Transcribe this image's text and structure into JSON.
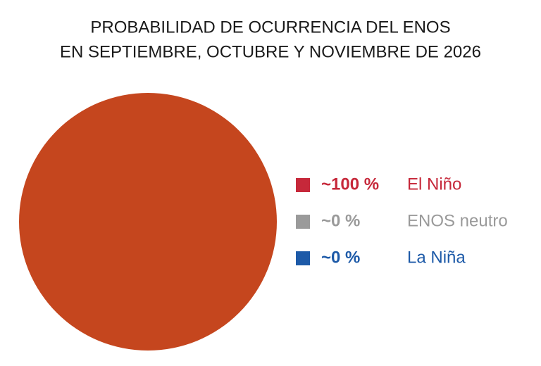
{
  "chart_data": {
    "type": "pie",
    "title": [
      "PROBABILIDAD DE OCURRENCIA DEL ENOS",
      "EN SEPTIEMBRE, OCTUBRE Y NOVIEMBRE DE 2026"
    ],
    "categories": [
      "El Niño",
      "ENOS neutro",
      "La Niña"
    ],
    "values": [
      100,
      0,
      0
    ],
    "value_labels": [
      "~100 %",
      "~0 %",
      "~0 %"
    ],
    "colors": [
      "#c5461e",
      "#9a9a9a",
      "#1d5aa8"
    ],
    "legend_colors": [
      "#c6283a",
      "#9a9a9a",
      "#1d5aa8"
    ]
  }
}
